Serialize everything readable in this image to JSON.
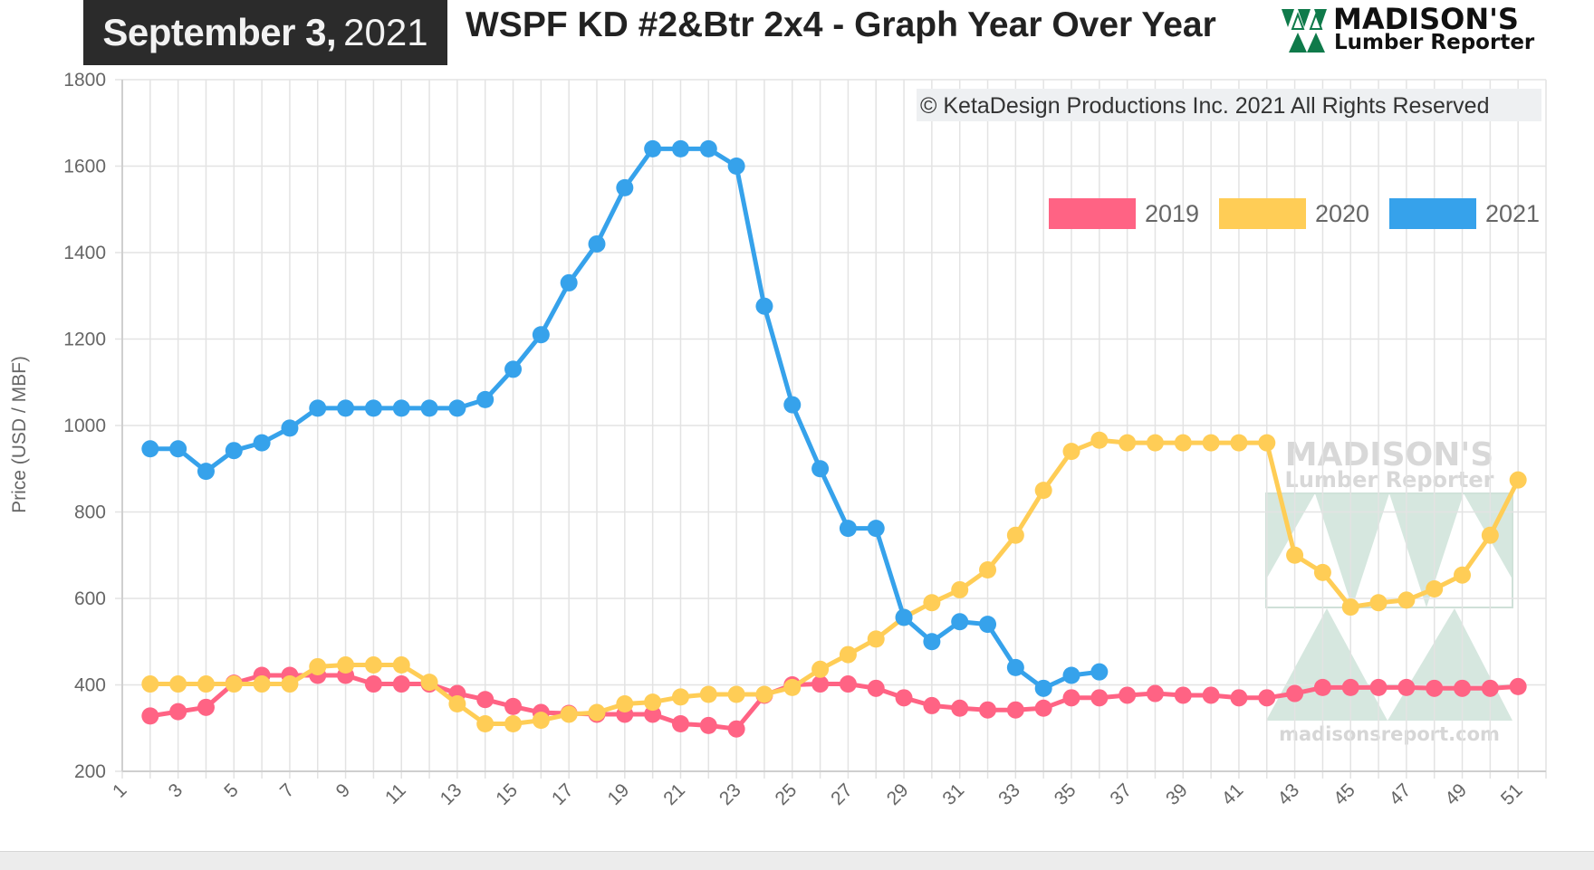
{
  "header": {
    "date_bold": "September 3,",
    "date_year": "2021",
    "title": "WSPF KD #2&Btr 2x4 - Graph Year Over Year",
    "logo_line1": "MADISON'S",
    "logo_line2": "Lumber Reporter"
  },
  "copyright": "© KetaDesign Productions Inc. 2021 All Rights Reserved",
  "watermark": {
    "line1": "MADISON'S",
    "line2": "Lumber Reporter",
    "url": "madisonsreport.com"
  },
  "colors": {
    "s2019": "#ff6384",
    "s2020": "#ffcd56",
    "s2021": "#36a2eb",
    "logo_green": "#0f7a4a"
  },
  "chart_data": {
    "type": "line",
    "title": "WSPF KD #2&Btr 2x4 - Graph Year Over Year",
    "ylabel": "Price (USD / MBF)",
    "xlabel": "",
    "ylim": [
      200,
      1800
    ],
    "xlim": [
      1,
      52
    ],
    "yticks": [
      200,
      400,
      600,
      800,
      1000,
      1200,
      1400,
      1600,
      1800
    ],
    "xticks": [
      1,
      3,
      5,
      7,
      9,
      11,
      13,
      15,
      17,
      19,
      21,
      23,
      25,
      27,
      29,
      31,
      33,
      35,
      37,
      39,
      41,
      43,
      45,
      47,
      49,
      51
    ],
    "grid": true,
    "legend": "top-right",
    "series": [
      {
        "name": "2019",
        "x": [
          2,
          3,
          4,
          5,
          6,
          7,
          8,
          9,
          10,
          11,
          12,
          13,
          14,
          15,
          16,
          17,
          18,
          19,
          20,
          21,
          22,
          23,
          24,
          25,
          26,
          27,
          28,
          29,
          30,
          31,
          32,
          33,
          34,
          35,
          36,
          37,
          38,
          39,
          40,
          41,
          42,
          43,
          44,
          45,
          46,
          47,
          48,
          49,
          50,
          51
        ],
        "values": [
          328,
          338,
          348,
          404,
          422,
          422,
          422,
          422,
          402,
          402,
          402,
          380,
          366,
          350,
          336,
          334,
          332,
          332,
          332,
          310,
          306,
          298,
          376,
          400,
          402,
          402,
          392,
          370,
          352,
          346,
          342,
          342,
          346,
          370,
          370,
          376,
          380,
          376,
          376,
          370,
          370,
          380,
          394,
          394,
          394,
          394,
          392,
          392,
          392,
          396
        ]
      },
      {
        "name": "2020",
        "x": [
          2,
          3,
          4,
          5,
          6,
          7,
          8,
          9,
          10,
          11,
          12,
          13,
          14,
          15,
          16,
          17,
          18,
          19,
          20,
          21,
          22,
          23,
          24,
          25,
          26,
          27,
          28,
          29,
          30,
          31,
          32,
          33,
          34,
          35,
          36,
          37,
          38,
          39,
          40,
          41,
          42,
          43,
          44,
          45,
          46,
          47,
          48,
          49,
          50,
          51
        ],
        "values": [
          402,
          402,
          402,
          402,
          402,
          402,
          442,
          446,
          446,
          446,
          406,
          356,
          310,
          310,
          318,
          332,
          336,
          356,
          360,
          372,
          378,
          378,
          378,
          394,
          436,
          470,
          506,
          556,
          590,
          620,
          666,
          746,
          850,
          940,
          966,
          960,
          960,
          960,
          960,
          960,
          960,
          700,
          660,
          580,
          590,
          596,
          622,
          654,
          746,
          874
        ]
      },
      {
        "name": "2021",
        "x": [
          2,
          3,
          4,
          5,
          6,
          7,
          8,
          9,
          10,
          11,
          12,
          13,
          14,
          15,
          16,
          17,
          18,
          19,
          20,
          21,
          22,
          23,
          24,
          25,
          26,
          27,
          28,
          29,
          30,
          31,
          32,
          33,
          34,
          35,
          36
        ],
        "values": [
          946,
          946,
          894,
          942,
          960,
          994,
          1040,
          1040,
          1040,
          1040,
          1040,
          1040,
          1060,
          1130,
          1210,
          1330,
          1420,
          1550,
          1640,
          1640,
          1640,
          1600,
          1276,
          1048,
          900,
          762,
          762,
          556,
          500,
          546,
          540,
          440,
          392,
          422,
          430
        ]
      }
    ]
  }
}
